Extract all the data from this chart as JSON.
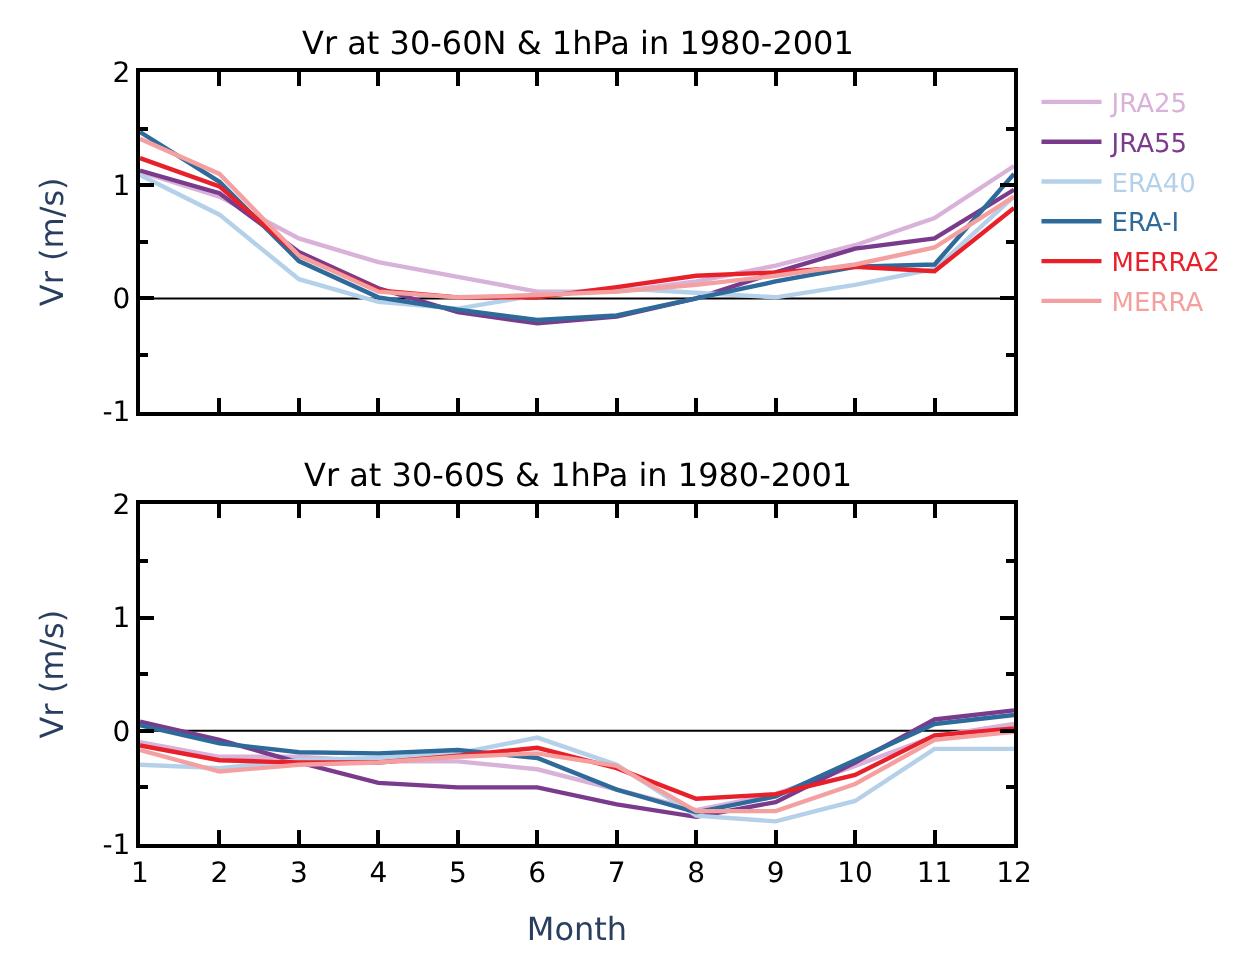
{
  "chart_data": [
    {
      "type": "line",
      "title": "Vr at 30-60N & 1hPa in 1980-2001",
      "ylabel": "Vr (m/s)",
      "x": [
        1,
        2,
        3,
        4,
        5,
        6,
        7,
        8,
        9,
        10,
        11,
        12
      ],
      "xlim": [
        1,
        12
      ],
      "xticks": [
        1,
        2,
        3,
        4,
        5,
        6,
        7,
        8,
        9,
        10,
        11,
        12
      ],
      "ylim": [
        -1,
        2
      ],
      "yticks": [
        -1,
        0,
        1,
        2
      ],
      "tick_labels": "y",
      "legend": "right",
      "grid": false,
      "ref_lines": [
        {
          "axis": "y",
          "value": 0,
          "color": "#000000"
        }
      ],
      "series": [
        {
          "name": "JRA25",
          "color": "#d8b2d8",
          "values": [
            1.12,
            0.9,
            0.53,
            0.32,
            0.19,
            0.06,
            0.06,
            0.15,
            0.29,
            0.47,
            0.71,
            1.17
          ]
        },
        {
          "name": "JRA55",
          "color": "#7b3b8c",
          "values": [
            1.13,
            0.93,
            0.41,
            0.09,
            -0.12,
            -0.22,
            -0.16,
            0,
            0.23,
            0.44,
            0.53,
            0.96
          ]
        },
        {
          "name": "ERA40",
          "color": "#b5d1ea",
          "values": [
            1.09,
            0.74,
            0.17,
            -0.03,
            -0.09,
            0.03,
            0.09,
            0.05,
            0.01,
            0.12,
            0.26,
            0.9
          ]
        },
        {
          "name": "ERA-I",
          "color": "#2e6a9a",
          "values": [
            1.47,
            1.03,
            0.33,
            0.01,
            -0.1,
            -0.19,
            -0.15,
            0,
            0.15,
            0.28,
            0.3,
            1.1
          ]
        },
        {
          "name": "MERRA2",
          "color": "#e8202a",
          "values": [
            1.24,
            0.99,
            0.38,
            0.07,
            0.01,
            0.01,
            0.1,
            0.2,
            0.23,
            0.28,
            0.24,
            0.8
          ]
        },
        {
          "name": "MERRA",
          "color": "#f4a0a0",
          "values": [
            1.41,
            1.1,
            0.38,
            0.06,
            0.01,
            0.03,
            0.06,
            0.12,
            0.2,
            0.3,
            0.45,
            0.9
          ]
        }
      ]
    },
    {
      "type": "line",
      "title": "Vr at 30-60S & 1hPa in 1980-2001",
      "xlabel": "Month",
      "ylabel": "Vr (m/s)",
      "x": [
        1,
        2,
        3,
        4,
        5,
        6,
        7,
        8,
        9,
        10,
        11,
        12
      ],
      "xlim": [
        1,
        12
      ],
      "xticks": [
        1,
        2,
        3,
        4,
        5,
        6,
        7,
        8,
        9,
        10,
        11,
        12
      ],
      "ylim": [
        -1,
        2
      ],
      "yticks": [
        -1,
        0,
        1,
        2
      ],
      "grid": false,
      "ref_lines": [
        {
          "axis": "y",
          "value": 0,
          "color": "#000000"
        }
      ],
      "series": [
        {
          "color": "#d8b2d8",
          "values": [
            -0.1,
            -0.23,
            -0.23,
            -0.27,
            -0.27,
            -0.34,
            -0.52,
            -0.7,
            -0.56,
            -0.31,
            -0.05,
            0.06
          ]
        },
        {
          "color": "#7b3b8c",
          "values": [
            0.08,
            -0.08,
            -0.28,
            -0.46,
            -0.5,
            -0.5,
            -0.65,
            -0.76,
            -0.63,
            -0.28,
            0.1,
            0.18
          ]
        },
        {
          "color": "#b5d1ea",
          "values": [
            -0.3,
            -0.33,
            -0.26,
            -0.24,
            -0.2,
            -0.06,
            -0.3,
            -0.75,
            -0.8,
            -0.62,
            -0.16,
            -0.16
          ]
        },
        {
          "color": "#2e6a9a",
          "values": [
            0.05,
            -0.11,
            -0.19,
            -0.2,
            -0.17,
            -0.24,
            -0.52,
            -0.72,
            -0.58,
            -0.26,
            0.06,
            0.14
          ]
        },
        {
          "color": "#e8202a",
          "values": [
            -0.13,
            -0.26,
            -0.28,
            -0.28,
            -0.22,
            -0.15,
            -0.33,
            -0.6,
            -0.56,
            -0.39,
            -0.04,
            0.02
          ]
        },
        {
          "color": "#f4a0a0",
          "values": [
            -0.17,
            -0.36,
            -0.3,
            -0.28,
            -0.23,
            -0.2,
            -0.31,
            -0.71,
            -0.71,
            -0.47,
            -0.08,
            -0.01
          ]
        }
      ]
    }
  ]
}
